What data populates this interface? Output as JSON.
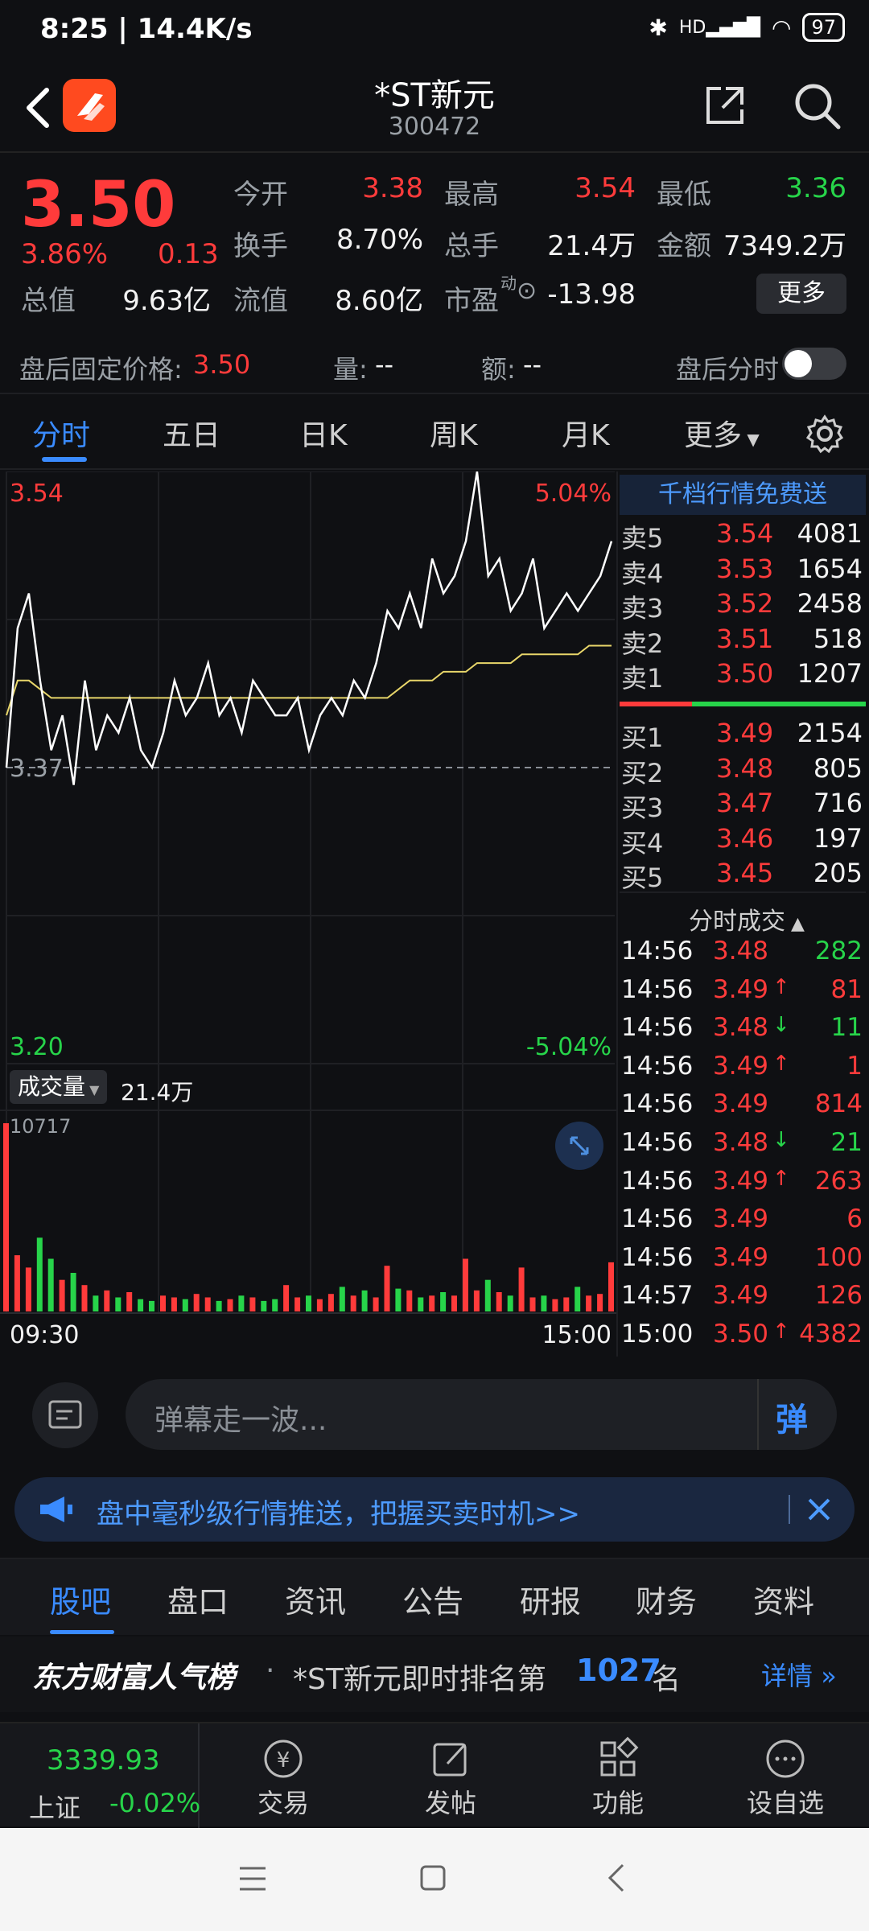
{
  "status": {
    "time": "8:25 | 14.4K/s",
    "hd": "HD",
    "battery": "97"
  },
  "header": {
    "name": "*ST新元",
    "code": "300472"
  },
  "quote": {
    "price": "3.50",
    "pct": "3.86%",
    "change": "0.13",
    "open_label": "今开",
    "open": "3.38",
    "high_label": "最高",
    "high": "3.54",
    "low_label": "最低",
    "low": "3.36",
    "turnover_label": "换手",
    "turnover": "8.70%",
    "volume_label": "总手",
    "volume": "21.4万",
    "amount_label": "金额",
    "amount": "7349.2万",
    "mktcap_label": "总值",
    "mktcap": "9.63亿",
    "float_label": "流值",
    "float": "8.60亿",
    "pe_label": "市盈",
    "pe_sup": "动",
    "pe": "-13.98",
    "more": "更多"
  },
  "after_hours": {
    "label": "盘后固定价格:",
    "price": "3.50",
    "vol_label": "量:",
    "vol": "--",
    "amt_label": "额:",
    "amt": "--",
    "switch_label": "盘后分时"
  },
  "tabs": [
    "分时",
    "五日",
    "日K",
    "周K",
    "月K",
    "更多"
  ],
  "chart": {
    "top_price": "3.54",
    "top_pct": "5.04%",
    "mid_price": "3.37",
    "bottom_price": "3.20",
    "bottom_pct": "-5.04%",
    "vol_label": "成交量",
    "vol_total": "21.4万",
    "vol_max": "10717",
    "time_start": "09:30",
    "time_end": "15:00"
  },
  "chart_data": {
    "type": "line",
    "price_range": [
      3.2,
      3.54
    ],
    "prev_close": 3.37,
    "series": [
      {
        "values": [
          3.37,
          3.45,
          3.47,
          3.42,
          3.38,
          3.4,
          3.36,
          3.42,
          3.38,
          3.4,
          3.39,
          3.41,
          3.38,
          3.37,
          3.39,
          3.42,
          3.4,
          3.41,
          3.43,
          3.4,
          3.41,
          3.39,
          3.42,
          3.41,
          3.4,
          3.4,
          3.41,
          3.38,
          3.4,
          3.41,
          3.4,
          3.42,
          3.41,
          3.43,
          3.46,
          3.45,
          3.47,
          3.45,
          3.49,
          3.47,
          3.48,
          3.5,
          3.54,
          3.48,
          3.49,
          3.46,
          3.47,
          3.49,
          3.45,
          3.46,
          3.47,
          3.46,
          3.47,
          3.48,
          3.5
        ]
      },
      {
        "values": [
          3.4,
          3.42,
          3.42,
          3.415,
          3.41,
          3.41,
          3.41,
          3.41,
          3.41,
          3.41,
          3.41,
          3.41,
          3.41,
          3.41,
          3.41,
          3.41,
          3.41,
          3.41,
          3.41,
          3.41,
          3.41,
          3.41,
          3.41,
          3.41,
          3.41,
          3.41,
          3.41,
          3.41,
          3.41,
          3.41,
          3.41,
          3.41,
          3.41,
          3.41,
          3.41,
          3.415,
          3.42,
          3.42,
          3.42,
          3.425,
          3.425,
          3.425,
          3.43,
          3.43,
          3.43,
          3.43,
          3.435,
          3.435,
          3.435,
          3.435,
          3.435,
          3.435,
          3.44,
          3.44,
          3.44
        ]
      }
    ],
    "volume": [
      10717,
      3200,
      2500,
      4200,
      3000,
      1800,
      2200,
      1500,
      900,
      1200,
      800,
      1100,
      700,
      600,
      900,
      800,
      700,
      1000,
      800,
      600,
      700,
      900,
      800,
      600,
      700,
      1500,
      800,
      900,
      700,
      1000,
      1400,
      900,
      1200,
      800,
      2600,
      1300,
      1200,
      800,
      900,
      1100,
      900,
      3000,
      1200,
      1800,
      1100,
      900,
      2500,
      800,
      900,
      700,
      800,
      1400,
      900,
      1000,
      2800
    ],
    "vol_max": 10717
  },
  "orderbook": {
    "promo": "千档行情免费送",
    "asks": [
      {
        "label": "卖5",
        "price": "3.54",
        "vol": "4081"
      },
      {
        "label": "卖4",
        "price": "3.53",
        "vol": "1654"
      },
      {
        "label": "卖3",
        "price": "3.52",
        "vol": "2458"
      },
      {
        "label": "卖2",
        "price": "3.51",
        "vol": "518"
      },
      {
        "label": "卖1",
        "price": "3.50",
        "vol": "1207"
      }
    ],
    "bids": [
      {
        "label": "买1",
        "price": "3.49",
        "vol": "2154"
      },
      {
        "label": "买2",
        "price": "3.48",
        "vol": "805"
      },
      {
        "label": "买3",
        "price": "3.47",
        "vol": "716"
      },
      {
        "label": "买4",
        "price": "3.46",
        "vol": "197"
      },
      {
        "label": "买5",
        "price": "3.45",
        "vol": "205"
      }
    ]
  },
  "deals": {
    "title": "分时成交",
    "rows": [
      {
        "time": "14:56",
        "price": "3.48",
        "arrow": "",
        "vol": "282",
        "vcolor": "green"
      },
      {
        "time": "14:56",
        "price": "3.49",
        "arrow": "↑",
        "vol": "81",
        "vcolor": "red"
      },
      {
        "time": "14:56",
        "price": "3.48",
        "arrow": "↓",
        "vol": "11",
        "vcolor": "green"
      },
      {
        "time": "14:56",
        "price": "3.49",
        "arrow": "↑",
        "vol": "1",
        "vcolor": "red"
      },
      {
        "time": "14:56",
        "price": "3.49",
        "arrow": "",
        "vol": "814",
        "vcolor": "red"
      },
      {
        "time": "14:56",
        "price": "3.48",
        "arrow": "↓",
        "vol": "21",
        "vcolor": "green"
      },
      {
        "time": "14:56",
        "price": "3.49",
        "arrow": "↑",
        "vol": "263",
        "vcolor": "red"
      },
      {
        "time": "14:56",
        "price": "3.49",
        "arrow": "",
        "vol": "6",
        "vcolor": "red"
      },
      {
        "time": "14:56",
        "price": "3.49",
        "arrow": "",
        "vol": "100",
        "vcolor": "red"
      },
      {
        "time": "14:57",
        "price": "3.49",
        "arrow": "",
        "vol": "126",
        "vcolor": "red"
      },
      {
        "time": "15:00",
        "price": "3.50",
        "arrow": "↑",
        "vol": "4382",
        "vcolor": "red"
      }
    ]
  },
  "danmu": {
    "placeholder": "弹幕走一波...",
    "button": "弹"
  },
  "notice": {
    "text": "盘中毫秒级行情推送，把握买卖时机>>"
  },
  "subtabs": [
    "股吧",
    "盘口",
    "资讯",
    "公告",
    "研报",
    "财务",
    "资料"
  ],
  "rank": {
    "brand": "东方财富人气榜",
    "text_prefix": "*ST新元即时排名第",
    "rank": "1027",
    "suffix": "名",
    "detail": "详情"
  },
  "dock": {
    "index_value": "3339.93",
    "index_name": "上证",
    "index_change": "-0.02%",
    "items": [
      "交易",
      "发帖",
      "功能",
      "设自选"
    ]
  },
  "colors": {
    "up": "#ff3b3b",
    "down": "#27d44a",
    "accent": "#3a8bff",
    "avg_line": "#e8d66a"
  }
}
